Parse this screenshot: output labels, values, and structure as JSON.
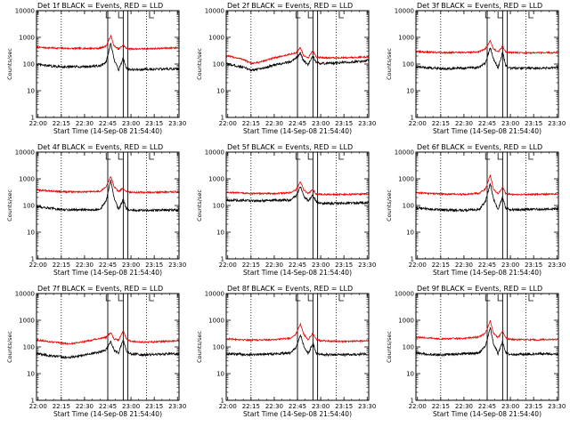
{
  "chart_data": [
    {
      "title": "Det 1f BLACK = Events, RED = LLD",
      "ylabel": "Counts/sec",
      "xlabel": "Start Time (14-Sep-08 21:54:40)",
      "type": "line",
      "yscale": "log",
      "ylim": [
        1,
        10000
      ],
      "xlim": [
        "21:59",
        "23:31"
      ],
      "x_ticks": [
        "22:00",
        "22:15",
        "22:30",
        "22:45",
        "23:00",
        "23:15",
        "23:30"
      ],
      "y_ticks": [
        "1",
        "10",
        "100",
        "1000",
        "10000"
      ],
      "dotted_markers": [
        "22:15",
        "23:10"
      ],
      "solid_markers": [
        "22:45",
        "22:55",
        "22:58"
      ],
      "corner_marks": [
        "22:44",
        "22:52",
        "23:12"
      ],
      "series": [
        {
          "color": "#000000",
          "x": [
            "22:00",
            "22:10",
            "22:20",
            "22:30",
            "22:40",
            "22:44",
            "22:47",
            "22:49",
            "22:52",
            "22:55",
            "22:57",
            "23:00",
            "23:05",
            "23:15",
            "23:30"
          ],
          "y": [
            95,
            82,
            78,
            80,
            85,
            120,
            600,
            150,
            60,
            170,
            70,
            62,
            62,
            65,
            65
          ]
        },
        {
          "color": "#ee0000",
          "x": [
            "22:00",
            "22:10",
            "22:20",
            "22:30",
            "22:40",
            "22:44",
            "22:47",
            "22:49",
            "22:52",
            "22:55",
            "22:57",
            "23:00",
            "23:05",
            "23:15",
            "23:30"
          ],
          "y": [
            420,
            400,
            385,
            385,
            390,
            480,
            1150,
            480,
            360,
            520,
            380,
            370,
            370,
            380,
            410
          ]
        }
      ]
    },
    {
      "title": "Det 2f BLACK = Events, RED = LLD",
      "ylabel": "Counts/sec",
      "xlabel": "Start Time (14-Sep-08 21:54:40)",
      "type": "line",
      "yscale": "log",
      "ylim": [
        1,
        10000
      ],
      "xlim": [
        "21:59",
        "23:31"
      ],
      "x_ticks": [
        "22:00",
        "22:15",
        "22:30",
        "22:45",
        "23:00",
        "23:15",
        "23:30"
      ],
      "y_ticks": [
        "1",
        "10",
        "100",
        "1000",
        "10000"
      ],
      "dotted_markers": [
        "22:15",
        "23:10"
      ],
      "solid_markers": [
        "22:45",
        "22:55",
        "22:58"
      ],
      "corner_marks": [
        "22:44",
        "22:52",
        "23:12"
      ],
      "series": [
        {
          "color": "#000000",
          "x": [
            "22:00",
            "22:10",
            "22:15",
            "22:20",
            "22:30",
            "22:40",
            "22:44",
            "22:47",
            "22:49",
            "22:52",
            "22:55",
            "22:57",
            "23:00",
            "23:10",
            "23:20",
            "23:30"
          ],
          "y": [
            100,
            75,
            60,
            65,
            90,
            120,
            170,
            250,
            130,
            95,
            200,
            110,
            105,
            110,
            120,
            135
          ]
        },
        {
          "color": "#ee0000",
          "x": [
            "22:00",
            "22:10",
            "22:15",
            "22:20",
            "22:30",
            "22:40",
            "22:44",
            "22:47",
            "22:49",
            "22:52",
            "22:55",
            "22:57",
            "23:00",
            "23:10",
            "23:20",
            "23:30"
          ],
          "y": [
            200,
            150,
            105,
            115,
            170,
            230,
            260,
            420,
            200,
            170,
            330,
            180,
            175,
            170,
            175,
            185
          ]
        }
      ]
    },
    {
      "title": "Det 3f BLACK = Events, RED = LLD",
      "ylabel": "Counts/sec",
      "xlabel": "Start Time (14-Sep-08 21:54:40)",
      "type": "line",
      "yscale": "log",
      "ylim": [
        1,
        10000
      ],
      "xlim": [
        "21:59",
        "23:31"
      ],
      "x_ticks": [
        "22:00",
        "22:15",
        "22:30",
        "22:45",
        "23:00",
        "23:15",
        "23:30"
      ],
      "y_ticks": [
        "1",
        "10",
        "100",
        "1000",
        "10000"
      ],
      "dotted_markers": [
        "22:15",
        "23:10"
      ],
      "solid_markers": [
        "22:45",
        "22:55",
        "22:58"
      ],
      "corner_marks": [
        "22:44",
        "22:52",
        "23:12"
      ],
      "series": [
        {
          "color": "#000000",
          "x": [
            "22:00",
            "22:15",
            "22:30",
            "22:40",
            "22:44",
            "22:47",
            "22:49",
            "22:52",
            "22:55",
            "22:57",
            "23:00",
            "23:15",
            "23:30"
          ],
          "y": [
            78,
            68,
            70,
            75,
            110,
            420,
            160,
            70,
            280,
            85,
            70,
            70,
            72
          ]
        },
        {
          "color": "#ee0000",
          "x": [
            "22:00",
            "22:15",
            "22:30",
            "22:40",
            "22:44",
            "22:47",
            "22:49",
            "22:52",
            "22:55",
            "22:57",
            "23:00",
            "23:15",
            "23:30"
          ],
          "y": [
            290,
            270,
            270,
            290,
            380,
            750,
            380,
            280,
            460,
            290,
            270,
            260,
            270
          ]
        }
      ]
    },
    {
      "title": "Det 4f BLACK = Events, RED = LLD",
      "ylabel": "Counts/sec",
      "xlabel": "Start Time (14-Sep-08 21:54:40)",
      "type": "line",
      "yscale": "log",
      "ylim": [
        1,
        10000
      ],
      "xlim": [
        "21:59",
        "23:31"
      ],
      "x_ticks": [
        "22:00",
        "22:15",
        "22:30",
        "22:45",
        "23:00",
        "23:15",
        "23:30"
      ],
      "y_ticks": [
        "1",
        "10",
        "100",
        "1000",
        "10000"
      ],
      "dotted_markers": [
        "22:15",
        "23:10"
      ],
      "solid_markers": [
        "22:45",
        "22:55",
        "22:58"
      ],
      "corner_marks": [
        "22:44",
        "22:52",
        "23:12"
      ],
      "series": [
        {
          "color": "#000000",
          "x": [
            "22:00",
            "22:15",
            "22:30",
            "22:40",
            "22:44",
            "22:47",
            "22:49",
            "22:52",
            "22:55",
            "22:57",
            "23:00",
            "23:15",
            "23:30"
          ],
          "y": [
            90,
            70,
            68,
            72,
            150,
            900,
            200,
            70,
            170,
            75,
            65,
            66,
            68
          ]
        },
        {
          "color": "#ee0000",
          "x": [
            "22:00",
            "22:15",
            "22:30",
            "22:40",
            "22:44",
            "22:47",
            "22:49",
            "22:52",
            "22:55",
            "22:57",
            "23:00",
            "23:15",
            "23:30"
          ],
          "y": [
            380,
            330,
            320,
            340,
            500,
            1250,
            520,
            330,
            450,
            330,
            310,
            310,
            330
          ]
        }
      ]
    },
    {
      "title": "Det 5f BLACK = Events, RED = LLD",
      "ylabel": "Counts/sec",
      "xlabel": "Start Time (14-Sep-08 21:54:40)",
      "type": "line",
      "yscale": "log",
      "ylim": [
        1,
        10000
      ],
      "xlim": [
        "21:59",
        "23:31"
      ],
      "x_ticks": [
        "22:00",
        "22:15",
        "22:30",
        "22:45",
        "23:00",
        "23:15",
        "23:30"
      ],
      "y_ticks": [
        "1",
        "10",
        "100",
        "1000",
        "10000"
      ],
      "dotted_markers": [
        "22:15",
        "23:10"
      ],
      "solid_markers": [
        "22:45",
        "22:55",
        "22:58"
      ],
      "corner_marks": [
        "22:44",
        "22:52",
        "23:12"
      ],
      "series": [
        {
          "color": "#000000",
          "x": [
            "22:00",
            "22:15",
            "22:30",
            "22:40",
            "22:44",
            "22:47",
            "22:49",
            "22:52",
            "22:55",
            "22:57",
            "23:00",
            "23:15",
            "23:30"
          ],
          "y": [
            160,
            150,
            155,
            160,
            220,
            520,
            230,
            150,
            240,
            140,
            120,
            120,
            130
          ]
        },
        {
          "color": "#ee0000",
          "x": [
            "22:00",
            "22:15",
            "22:30",
            "22:40",
            "22:44",
            "22:47",
            "22:49",
            "22:52",
            "22:55",
            "22:57",
            "23:00",
            "23:15",
            "23:30"
          ],
          "y": [
            310,
            280,
            280,
            300,
            380,
            780,
            380,
            280,
            400,
            270,
            260,
            260,
            270
          ]
        }
      ]
    },
    {
      "title": "Det 6f BLACK = Events, RED = LLD",
      "ylabel": "Counts/sec",
      "xlabel": "Start Time (14-Sep-08 21:54:40)",
      "type": "line",
      "yscale": "log",
      "ylim": [
        1,
        10000
      ],
      "xlim": [
        "21:59",
        "23:31"
      ],
      "x_ticks": [
        "22:00",
        "22:15",
        "22:30",
        "22:45",
        "23:00",
        "23:15",
        "23:30"
      ],
      "y_ticks": [
        "1",
        "10",
        "100",
        "1000",
        "10000"
      ],
      "dotted_markers": [
        "22:15",
        "23:10"
      ],
      "solid_markers": [
        "22:45",
        "22:55",
        "22:58"
      ],
      "corner_marks": [
        "22:44",
        "22:52",
        "23:12"
      ],
      "series": [
        {
          "color": "#000000",
          "x": [
            "22:00",
            "22:15",
            "22:30",
            "22:40",
            "22:44",
            "22:47",
            "22:49",
            "22:52",
            "22:55",
            "22:57",
            "23:00",
            "23:15",
            "23:30"
          ],
          "y": [
            80,
            68,
            66,
            70,
            150,
            680,
            180,
            70,
            210,
            80,
            70,
            72,
            75
          ]
        },
        {
          "color": "#ee0000",
          "x": [
            "22:00",
            "22:15",
            "22:30",
            "22:40",
            "22:44",
            "22:47",
            "22:49",
            "22:52",
            "22:55",
            "22:57",
            "23:00",
            "23:15",
            "23:30"
          ],
          "y": [
            300,
            270,
            260,
            290,
            420,
            1400,
            420,
            270,
            480,
            280,
            260,
            260,
            270
          ]
        }
      ]
    },
    {
      "title": "Det 7f BLACK = Events, RED = LLD",
      "ylabel": "Counts/sec",
      "xlabel": "Start Time (14-Sep-08 21:54:40)",
      "type": "line",
      "yscale": "log",
      "ylim": [
        1,
        10000
      ],
      "xlim": [
        "21:59",
        "23:31"
      ],
      "x_ticks": [
        "22:00",
        "22:15",
        "22:30",
        "22:45",
        "23:00",
        "23:15",
        "23:30"
      ],
      "y_ticks": [
        "1",
        "10",
        "100",
        "1000",
        "10000"
      ],
      "dotted_markers": [
        "22:15",
        "23:10"
      ],
      "solid_markers": [
        "22:45",
        "22:55",
        "22:58"
      ],
      "corner_marks": [
        "22:44",
        "22:52",
        "23:12"
      ],
      "series": [
        {
          "color": "#000000",
          "x": [
            "22:00",
            "22:10",
            "22:20",
            "22:30",
            "22:40",
            "22:44",
            "22:47",
            "22:49",
            "22:52",
            "22:55",
            "22:57",
            "23:00",
            "23:10",
            "23:20",
            "23:30"
          ],
          "y": [
            55,
            45,
            40,
            50,
            65,
            80,
            160,
            75,
            60,
            190,
            70,
            55,
            50,
            55,
            55
          ]
        },
        {
          "color": "#ee0000",
          "x": [
            "22:00",
            "22:10",
            "22:20",
            "22:30",
            "22:40",
            "22:44",
            "22:47",
            "22:49",
            "22:52",
            "22:55",
            "22:57",
            "23:00",
            "23:10",
            "23:20",
            "23:30"
          ],
          "y": [
            180,
            150,
            130,
            160,
            210,
            230,
            350,
            200,
            180,
            400,
            200,
            160,
            150,
            160,
            170
          ]
        }
      ]
    },
    {
      "title": "Det 8f BLACK = Events, RED = LLD",
      "ylabel": "Counts/sec",
      "xlabel": "Start Time (14-Sep-08 21:54:40)",
      "type": "line",
      "yscale": "log",
      "ylim": [
        1,
        10000
      ],
      "xlim": [
        "21:59",
        "23:31"
      ],
      "x_ticks": [
        "22:00",
        "22:15",
        "22:30",
        "22:45",
        "23:00",
        "23:15",
        "23:30"
      ],
      "y_ticks": [
        "1",
        "10",
        "100",
        "1000",
        "10000"
      ],
      "dotted_markers": [
        "22:15",
        "23:10"
      ],
      "solid_markers": [
        "22:45",
        "22:55",
        "22:58"
      ],
      "corner_marks": [
        "22:44",
        "22:52",
        "23:12"
      ],
      "series": [
        {
          "color": "#000000",
          "x": [
            "22:00",
            "22:15",
            "22:30",
            "22:40",
            "22:44",
            "22:47",
            "22:49",
            "22:52",
            "22:55",
            "22:57",
            "23:00",
            "23:15",
            "23:30"
          ],
          "y": [
            55,
            52,
            55,
            60,
            90,
            300,
            110,
            55,
            140,
            60,
            52,
            50,
            55
          ]
        },
        {
          "color": "#ee0000",
          "x": [
            "22:00",
            "22:15",
            "22:30",
            "22:40",
            "22:44",
            "22:47",
            "22:49",
            "22:52",
            "22:55",
            "22:57",
            "23:00",
            "23:15",
            "23:30"
          ],
          "y": [
            200,
            180,
            190,
            210,
            300,
            750,
            300,
            190,
            330,
            190,
            170,
            160,
            170
          ]
        }
      ]
    },
    {
      "title": "Det 9f BLACK = Events, RED = LLD",
      "ylabel": "Counts/sec",
      "xlabel": "Start Time (14-Sep-08 21:54:40)",
      "type": "line",
      "yscale": "log",
      "ylim": [
        1,
        10000
      ],
      "xlim": [
        "21:59",
        "23:31"
      ],
      "x_ticks": [
        "22:00",
        "22:15",
        "22:30",
        "22:45",
        "23:00",
        "23:15",
        "23:30"
      ],
      "y_ticks": [
        "1",
        "10",
        "100",
        "1000",
        "10000"
      ],
      "dotted_markers": [
        "22:15",
        "23:10"
      ],
      "solid_markers": [
        "22:45",
        "22:55",
        "22:58"
      ],
      "corner_marks": [
        "22:44",
        "22:52",
        "23:12"
      ],
      "series": [
        {
          "color": "#000000",
          "x": [
            "22:00",
            "22:15",
            "22:30",
            "22:40",
            "22:44",
            "22:47",
            "22:49",
            "22:52",
            "22:55",
            "22:57",
            "23:00",
            "23:15",
            "23:30"
          ],
          "y": [
            58,
            50,
            55,
            60,
            110,
            550,
            140,
            55,
            160,
            60,
            52,
            55,
            55
          ]
        },
        {
          "color": "#ee0000",
          "x": [
            "22:00",
            "22:15",
            "22:30",
            "22:40",
            "22:44",
            "22:47",
            "22:49",
            "22:52",
            "22:55",
            "22:57",
            "23:00",
            "23:15",
            "23:30"
          ],
          "y": [
            230,
            200,
            210,
            240,
            340,
            950,
            330,
            220,
            380,
            220,
            190,
            185,
            190
          ]
        }
      ]
    }
  ]
}
